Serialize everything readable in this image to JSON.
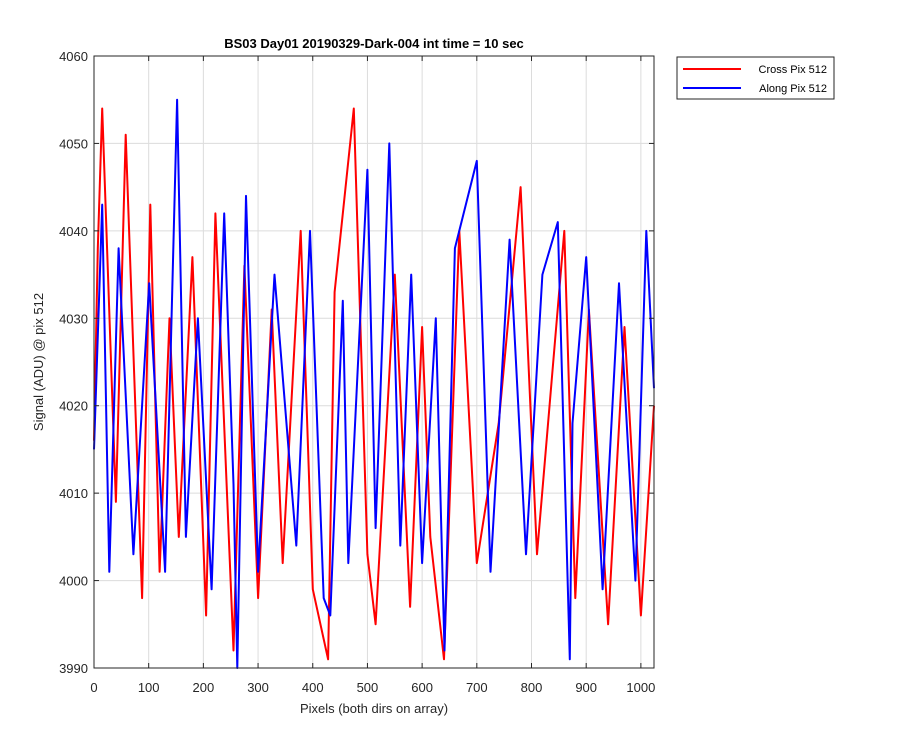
{
  "chart_data": {
    "type": "line",
    "title": "BS03 Day01 20190329-Dark-004 int time = 10 sec",
    "xlabel": "Pixels (both dirs on array)",
    "ylabel": "Signal (ADU) @ pix 512",
    "xlim": [
      0,
      1024
    ],
    "ylim": [
      3990,
      4060
    ],
    "x_ticks": [
      "0",
      "100",
      "200",
      "300",
      "400",
      "500",
      "600",
      "700",
      "800",
      "900",
      "1000"
    ],
    "x_tick_values": [
      0,
      100,
      200,
      300,
      400,
      500,
      600,
      700,
      800,
      900,
      1000
    ],
    "y_ticks": [
      "3990",
      "4000",
      "4010",
      "4020",
      "4030",
      "4040",
      "4050",
      "4060"
    ],
    "y_tick_values": [
      3990,
      4000,
      4010,
      4020,
      4030,
      4040,
      4050,
      4060
    ],
    "grid": true,
    "legend_position": "outside top-right",
    "series": [
      {
        "name": "Cross Pix 512",
        "color": "#ff0000",
        "x": [
          0,
          7,
          15,
          40,
          58,
          88,
          103,
          120,
          138,
          155,
          180,
          205,
          222,
          255,
          275,
          300,
          325,
          345,
          378,
          400,
          428,
          440,
          475,
          500,
          515,
          550,
          578,
          600,
          615,
          640,
          668,
          700,
          740,
          780,
          810,
          860,
          880,
          905,
          940,
          970,
          1000,
          1024
        ],
        "values": [
          4016,
          4038,
          4054,
          4009,
          4051,
          3998,
          4043,
          4001,
          4030,
          4005,
          4037,
          3996,
          4042,
          3992,
          4036,
          3998,
          4031,
          4002,
          4040,
          3999,
          3991,
          4033,
          4054,
          4003,
          3995,
          4035,
          3997,
          4029,
          4005,
          3991,
          4040,
          4002,
          4018,
          4045,
          4003,
          4040,
          3998,
          4031,
          3995,
          4029,
          3996,
          4020
        ]
      },
      {
        "name": "Along Pix 512",
        "color": "#0000ff",
        "x": [
          0,
          15,
          28,
          45,
          72,
          101,
          130,
          152,
          168,
          190,
          215,
          238,
          255,
          262,
          278,
          300,
          330,
          370,
          395,
          420,
          432,
          455,
          465,
          500,
          515,
          540,
          560,
          580,
          600,
          625,
          641,
          660,
          700,
          725,
          760,
          790,
          820,
          848,
          870,
          875,
          900,
          930,
          960,
          990,
          1010,
          1024
        ],
        "values": [
          4015,
          4043,
          4001,
          4038,
          4003,
          4034,
          4001,
          4055,
          4005,
          4030,
          3999,
          4042,
          4011,
          3990,
          4044,
          4001,
          4035,
          4004,
          4040,
          3998,
          3996,
          4032,
          4002,
          4047,
          4006,
          4050,
          4004,
          4035,
          4002,
          4030,
          3992,
          4038,
          4048,
          4001,
          4039,
          4003,
          4035,
          4041,
          3991,
          4018,
          4037,
          3999,
          4034,
          4000,
          4040,
          4022
        ]
      }
    ]
  }
}
